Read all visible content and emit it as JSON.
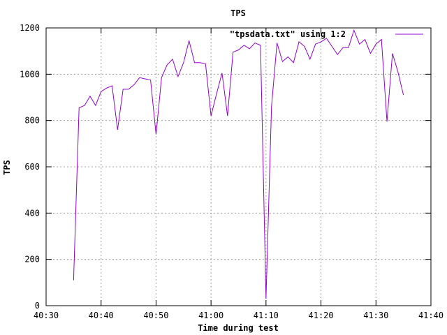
{
  "chart_data": {
    "type": "line",
    "title": "TPS",
    "xlabel": "Time during test",
    "ylabel": "TPS",
    "xlim": [
      "40:30",
      "41:40"
    ],
    "ylim": [
      0,
      1200
    ],
    "grid": true,
    "legend_position": "top-right",
    "x_ticks": [
      "40:30",
      "40:40",
      "40:50",
      "41:00",
      "41:10",
      "41:20",
      "41:30",
      "41:40"
    ],
    "y_ticks": [
      "0",
      "200",
      "400",
      "600",
      "800",
      "1000",
      "1200"
    ],
    "series": [
      {
        "name": "\"tpsdata.txt\" using 1:2",
        "color": "#9400d3",
        "x": [
          "40:35",
          "40:36",
          "40:37",
          "40:38",
          "40:39",
          "40:40",
          "40:41",
          "40:42",
          "40:43",
          "40:44",
          "40:45",
          "40:46",
          "40:47",
          "40:48",
          "40:49",
          "40:50",
          "40:51",
          "40:52",
          "40:53",
          "40:54",
          "40:55",
          "40:56",
          "40:57",
          "40:58",
          "40:59",
          "41:00",
          "41:01",
          "41:02",
          "41:03",
          "41:04",
          "41:05",
          "41:06",
          "41:07",
          "41:08",
          "41:09",
          "41:10",
          "41:11",
          "41:12",
          "41:13",
          "41:14",
          "41:15",
          "41:16",
          "41:17",
          "41:18",
          "41:19",
          "41:20",
          "41:21",
          "41:22",
          "41:23",
          "41:24",
          "41:25",
          "41:26",
          "41:27",
          "41:28",
          "41:29",
          "41:30",
          "41:31",
          "41:32",
          "41:33",
          "41:34",
          "41:35"
        ],
        "y": [
          110,
          855,
          865,
          905,
          865,
          925,
          940,
          950,
          760,
          935,
          935,
          955,
          985,
          980,
          975,
          740,
          985,
          1040,
          1065,
          990,
          1050,
          1145,
          1050,
          1050,
          1045,
          820,
          915,
          1005,
          820,
          1095,
          1105,
          1125,
          1110,
          1135,
          1125,
          30,
          860,
          1135,
          1055,
          1075,
          1050,
          1140,
          1120,
          1065,
          1130,
          1140,
          1155,
          1120,
          1085,
          1115,
          1115,
          1190,
          1130,
          1150,
          1090,
          1130,
          1150,
          795,
          1090,
          1010,
          910
        ]
      }
    ]
  }
}
